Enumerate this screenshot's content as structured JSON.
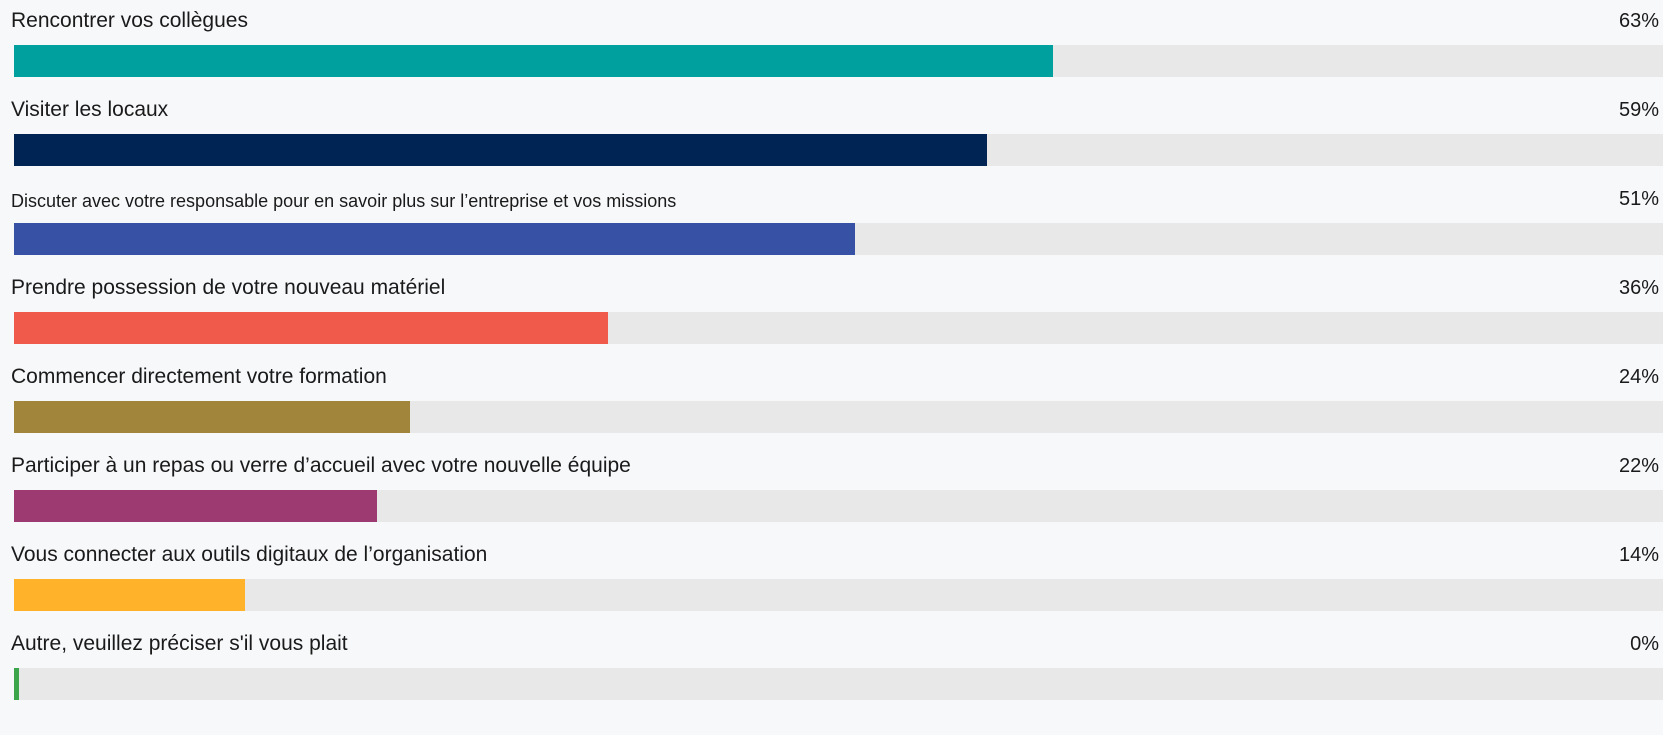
{
  "chart_data": {
    "type": "bar",
    "orientation": "horizontal",
    "xlim": [
      0,
      100
    ],
    "unit": "%",
    "grid": false,
    "categories": [
      "Rencontrer vos collègues",
      "Visiter les locaux",
      "Discuter avec votre responsable pour en savoir plus sur l’entreprise et vos missions",
      "Prendre possession de votre nouveau matériel",
      "Commencer directement votre formation",
      "Participer à un repas ou verre d’accueil avec votre nouvelle équipe",
      "Vous connecter aux outils digitaux de l’organisation",
      "Autre, veuillez préciser s'il vous plait"
    ],
    "values": [
      63,
      59,
      51,
      36,
      24,
      22,
      14,
      0
    ],
    "value_labels": [
      "63%",
      "59%",
      "51%",
      "36%",
      "24%",
      "22%",
      "14%",
      "0%"
    ],
    "colors": [
      "#00a09e",
      "#002554",
      "#3751a5",
      "#f05a4a",
      "#a0853a",
      "#9e3a72",
      "#ffb22a",
      "#3aa54a"
    ],
    "track_color": "#e8e8e8",
    "background_color": "#f7f8fa"
  }
}
